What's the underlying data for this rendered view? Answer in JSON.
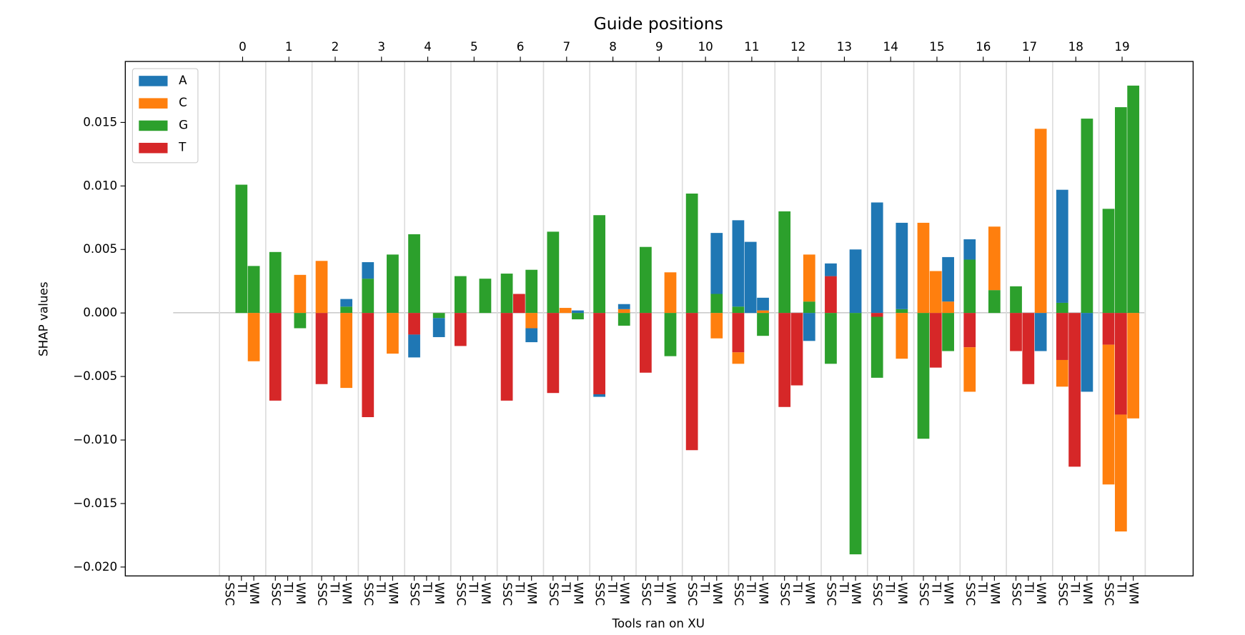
{
  "chart_data": {
    "type": "bar",
    "stacked": true,
    "title": "Guide positions",
    "x_label": "Tools ran on XU",
    "y_label": "SHAP values",
    "x2_categories": [
      "0",
      "1",
      "2",
      "3",
      "4",
      "5",
      "6",
      "7",
      "8",
      "9",
      "10",
      "11",
      "12",
      "13",
      "14",
      "15",
      "16",
      "17",
      "18",
      "19"
    ],
    "categories": [
      "SSC",
      "TI",
      "WM",
      "SSC",
      "TI",
      "WM",
      "SSC",
      "TI",
      "WM",
      "SSC",
      "TI",
      "WM",
      "SSC",
      "TI",
      "WM",
      "SSC",
      "TI",
      "WM",
      "SSC",
      "TI",
      "WM",
      "SSC",
      "TI",
      "WM",
      "SSC",
      "TI",
      "WM",
      "SSC",
      "TI",
      "WM",
      "SSC",
      "TI",
      "WM",
      "SSC",
      "TI",
      "WM",
      "SSC",
      "TI",
      "WM",
      "SSC",
      "TI",
      "WM",
      "SSC",
      "TI",
      "WM",
      "SSC",
      "TI",
      "WM",
      "SSC",
      "TI",
      "WM",
      "SSC",
      "TI",
      "WM",
      "SSC",
      "TI",
      "WM",
      "SSC",
      "TI",
      "WM"
    ],
    "series": [
      {
        "name": "A",
        "color": "#1f77b4",
        "values": [
          0,
          0,
          0,
          0,
          0,
          0,
          0,
          0,
          0.0006,
          0.0013,
          0,
          0,
          -0.0018,
          0,
          -0.0015,
          0,
          0,
          0,
          0,
          0,
          -0.0011,
          0,
          0,
          0.0002,
          -0.0002,
          0,
          0.0004,
          0,
          0,
          0,
          0,
          0,
          0.0048,
          0.0068,
          0.0056,
          0.001,
          0,
          0,
          -0.0022,
          0.001,
          0,
          0.005,
          0.0087,
          0,
          0.0068,
          0,
          0,
          0.0035,
          0.0016,
          0,
          0,
          0,
          0,
          -0.003,
          0.0089,
          0,
          -0.0062,
          0,
          0,
          0
        ]
      },
      {
        "name": "C",
        "color": "#ff7f0e",
        "values": [
          0,
          0,
          -0.0038,
          0,
          0,
          0.003,
          0.0041,
          0,
          -0.0059,
          0,
          0,
          -0.0032,
          0,
          0,
          0,
          0,
          0,
          0,
          0,
          0,
          -0.0012,
          0,
          0.0004,
          0,
          0,
          0,
          0.0003,
          0,
          0,
          0.0032,
          0,
          0,
          -0.002,
          -0.0009,
          0,
          0.0002,
          0,
          0,
          0.0037,
          0,
          0,
          0,
          0,
          0,
          -0.0036,
          0.0071,
          0.0033,
          0.0009,
          -0.0035,
          0,
          0.005,
          0,
          0,
          0.0145,
          -0.0021,
          0,
          0,
          -0.011,
          -0.0092,
          -0.0083
        ]
      },
      {
        "name": "G",
        "color": "#2ca02c",
        "values": [
          0,
          0.0101,
          0.0037,
          0.0048,
          0,
          -0.0012,
          0,
          0,
          0.0005,
          0.0027,
          0,
          0.0046,
          0.0062,
          0,
          -0.0004,
          0.0029,
          0,
          0.0027,
          0.0031,
          0,
          0.0034,
          0.0064,
          0,
          -0.0005,
          0.0077,
          0,
          -0.001,
          0.0052,
          0,
          -0.0034,
          0.0094,
          0,
          0.0015,
          0.0005,
          0,
          -0.0018,
          0.008,
          0,
          0.0009,
          -0.004,
          0,
          -0.019,
          -0.0048,
          0,
          0.0003,
          -0.0099,
          0,
          -0.003,
          0.0042,
          0,
          0.0018,
          0.0021,
          0,
          0,
          0.0008,
          0,
          0.0153,
          0.0082,
          0.0162,
          0.0179
        ]
      },
      {
        "name": "T",
        "color": "#d62728",
        "values": [
          0,
          0,
          0,
          -0.0069,
          0,
          0,
          -0.0056,
          0,
          0,
          -0.0082,
          0,
          0,
          -0.0017,
          0,
          0,
          -0.0026,
          0,
          0,
          -0.0069,
          0.0015,
          0,
          -0.0063,
          0,
          0,
          -0.0064,
          0,
          0,
          -0.0047,
          0,
          0,
          -0.0108,
          0,
          0,
          -0.0031,
          0,
          0,
          -0.0074,
          -0.0057,
          0,
          0.0029,
          0,
          0,
          -0.0003,
          0,
          0,
          0,
          -0.0043,
          0,
          -0.0027,
          0,
          0,
          -0.003,
          -0.0056,
          0,
          -0.0037,
          -0.0121,
          0,
          -0.0025,
          -0.008,
          0
        ]
      }
    ],
    "ylim": [
      -0.0207,
      0.0198
    ],
    "yticks": [
      {
        "value": -0.02,
        "label": "−0.020"
      },
      {
        "value": -0.015,
        "label": "−0.015"
      },
      {
        "value": -0.01,
        "label": "−0.010"
      },
      {
        "value": -0.005,
        "label": "−0.005"
      },
      {
        "value": 0,
        "label": "0.000"
      },
      {
        "value": 0.005,
        "label": "0.005"
      },
      {
        "value": 0.01,
        "label": "0.010"
      },
      {
        "value": 0.015,
        "label": "0.015"
      }
    ],
    "grid": true,
    "legend": "upper left"
  }
}
